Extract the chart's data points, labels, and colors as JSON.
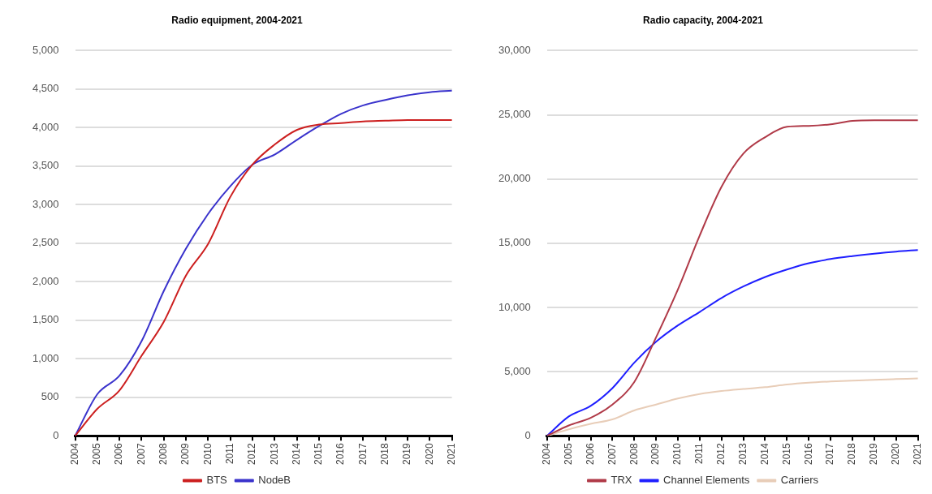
{
  "chart_data": [
    {
      "type": "line",
      "title": "Radio equipment, 2004-2021",
      "categories": [
        "2004",
        "2005",
        "2006",
        "2007",
        "2008",
        "2009",
        "2010",
        "2011",
        "2012",
        "2013",
        "2014",
        "2015",
        "2016",
        "2017",
        "2018",
        "2019",
        "2020",
        "2021"
      ],
      "series": [
        {
          "name": "BTS",
          "color": "#cc1f1f",
          "values": [
            0,
            350,
            590,
            1040,
            1480,
            2080,
            2490,
            3100,
            3520,
            3780,
            3970,
            4040,
            4060,
            4080,
            4090,
            4100,
            4100,
            4100
          ]
        },
        {
          "name": "NodeB",
          "color": "#3a33cc",
          "values": [
            0,
            540,
            780,
            1230,
            1880,
            2430,
            2880,
            3240,
            3520,
            3650,
            3840,
            4020,
            4180,
            4290,
            4360,
            4420,
            4460,
            4480
          ]
        }
      ],
      "ylim": [
        0,
        5000
      ],
      "yticks": [
        {
          "value": 0,
          "label": "0"
        },
        {
          "value": 500,
          "label": "500"
        },
        {
          "value": 1000,
          "label": "1,000"
        },
        {
          "value": 1500,
          "label": "1,500"
        },
        {
          "value": 2000,
          "label": "2,000"
        },
        {
          "value": 2500,
          "label": "2,500"
        },
        {
          "value": 3000,
          "label": "3,000"
        },
        {
          "value": 3500,
          "label": "3,500"
        },
        {
          "value": 4000,
          "label": "4,000"
        },
        {
          "value": 4500,
          "label": "4,500"
        },
        {
          "value": 5000,
          "label": "5,000"
        }
      ],
      "grid": "y",
      "legend": "bottom",
      "marker": "none",
      "line_style": "solid"
    },
    {
      "type": "line",
      "title": "Radio capacity, 2004-2021",
      "categories": [
        "2004",
        "2005",
        "2006",
        "2007",
        "2008",
        "2009",
        "2010",
        "2011",
        "2012",
        "2013",
        "2014",
        "2015",
        "2016",
        "2017",
        "2018",
        "2019",
        "2020",
        "2021"
      ],
      "series": [
        {
          "name": "TRX",
          "color": "#b03a48",
          "values": [
            0,
            810,
            1400,
            2440,
            4190,
            7670,
            11400,
            15600,
            19400,
            21980,
            23260,
            24070,
            24140,
            24260,
            24530,
            24580,
            24580,
            24580
          ]
        },
        {
          "name": "Channel Elements",
          "color": "#1f1fff",
          "values": [
            0,
            1510,
            2330,
            3720,
            5700,
            7330,
            8600,
            9650,
            10740,
            11630,
            12370,
            12950,
            13440,
            13770,
            14000,
            14190,
            14350,
            14470
          ]
        },
        {
          "name": "Carriers",
          "color": "#e8cdb8",
          "values": [
            0,
            510,
            930,
            1280,
            1980,
            2440,
            2910,
            3260,
            3490,
            3650,
            3790,
            4000,
            4140,
            4230,
            4300,
            4370,
            4420,
            4470
          ]
        }
      ],
      "ylim": [
        0,
        30000
      ],
      "yticks": [
        {
          "value": 0,
          "label": "0"
        },
        {
          "value": 5000,
          "label": "5,000"
        },
        {
          "value": 10000,
          "label": "10,000"
        },
        {
          "value": 15000,
          "label": "15,000"
        },
        {
          "value": 20000,
          "label": "20,000"
        },
        {
          "value": 25000,
          "label": "25,000"
        },
        {
          "value": 30000,
          "label": "30,000"
        }
      ],
      "grid": "y",
      "legend": "bottom",
      "marker": "none",
      "line_style": "solid"
    }
  ]
}
